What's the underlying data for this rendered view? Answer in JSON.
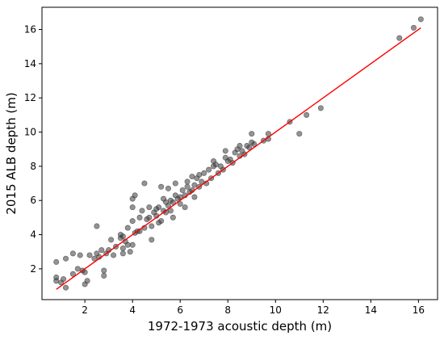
{
  "chart_data": {
    "type": "scatter",
    "xlabel": "1972-1973 acoustic depth (m)",
    "ylabel": "2015 ALB depth (m)",
    "xlim": [
      0.2,
      16.8
    ],
    "ylim": [
      0.2,
      17.3
    ],
    "xticks": [
      2,
      4,
      6,
      8,
      10,
      12,
      14,
      16
    ],
    "yticks": [
      2,
      4,
      6,
      8,
      10,
      12,
      14,
      16
    ],
    "grid": false,
    "point_color": "#3a3a3a",
    "line_color": "#ff0000",
    "points": [
      [
        0.8,
        2.4
      ],
      [
        0.8,
        1.5
      ],
      [
        0.8,
        1.3
      ],
      [
        1.0,
        1.2
      ],
      [
        1.2,
        0.9
      ],
      [
        1.1,
        1.4
      ],
      [
        1.2,
        2.6
      ],
      [
        1.5,
        2.9
      ],
      [
        1.5,
        1.7
      ],
      [
        1.7,
        2.0
      ],
      [
        1.8,
        2.8
      ],
      [
        1.9,
        1.9
      ],
      [
        2.0,
        1.1
      ],
      [
        2.0,
        1.8
      ],
      [
        2.1,
        1.3
      ],
      [
        2.2,
        2.8
      ],
      [
        2.4,
        2.6
      ],
      [
        2.5,
        2.9
      ],
      [
        2.5,
        4.5
      ],
      [
        2.6,
        2.7
      ],
      [
        2.7,
        3.1
      ],
      [
        2.8,
        1.6
      ],
      [
        2.8,
        1.9
      ],
      [
        2.9,
        2.9
      ],
      [
        3.0,
        3.1
      ],
      [
        3.1,
        3.7
      ],
      [
        3.2,
        2.8
      ],
      [
        3.3,
        3.3
      ],
      [
        3.5,
        3.8
      ],
      [
        3.5,
        4.0
      ],
      [
        3.6,
        3.9
      ],
      [
        3.6,
        3.2
      ],
      [
        3.6,
        2.9
      ],
      [
        3.7,
        3.6
      ],
      [
        3.8,
        3.4
      ],
      [
        3.8,
        4.4
      ],
      [
        3.9,
        3.0
      ],
      [
        4.0,
        3.4
      ],
      [
        4.0,
        4.8
      ],
      [
        4.0,
        5.6
      ],
      [
        4.0,
        6.1
      ],
      [
        4.1,
        6.3
      ],
      [
        4.1,
        4.1
      ],
      [
        4.2,
        4.2
      ],
      [
        4.3,
        4.2
      ],
      [
        4.3,
        5.0
      ],
      [
        4.4,
        5.4
      ],
      [
        4.5,
        4.4
      ],
      [
        4.5,
        7.0
      ],
      [
        4.6,
        4.9
      ],
      [
        4.7,
        5.0
      ],
      [
        4.7,
        5.6
      ],
      [
        4.8,
        4.5
      ],
      [
        4.8,
        3.7
      ],
      [
        4.9,
        5.3
      ],
      [
        5.0,
        5.1
      ],
      [
        5.0,
        5.5
      ],
      [
        5.1,
        4.7
      ],
      [
        5.1,
        5.6
      ],
      [
        5.2,
        4.8
      ],
      [
        5.2,
        6.8
      ],
      [
        5.3,
        5.4
      ],
      [
        5.3,
        6.1
      ],
      [
        5.4,
        5.3
      ],
      [
        5.4,
        5.9
      ],
      [
        5.5,
        5.7
      ],
      [
        5.5,
        6.7
      ],
      [
        5.6,
        5.4
      ],
      [
        5.6,
        6.0
      ],
      [
        5.7,
        5.0
      ],
      [
        5.7,
        5.9
      ],
      [
        5.8,
        6.3
      ],
      [
        5.8,
        7.0
      ],
      [
        5.9,
        6.1
      ],
      [
        6.0,
        6.2
      ],
      [
        6.0,
        5.8
      ],
      [
        6.1,
        6.6
      ],
      [
        6.2,
        6.3
      ],
      [
        6.2,
        5.6
      ],
      [
        6.3,
        6.8
      ],
      [
        6.3,
        7.1
      ],
      [
        6.4,
        6.5
      ],
      [
        6.5,
        6.6
      ],
      [
        6.5,
        7.4
      ],
      [
        6.6,
        6.2
      ],
      [
        6.6,
        6.9
      ],
      [
        6.7,
        7.3
      ],
      [
        6.8,
        7.5
      ],
      [
        6.8,
        6.8
      ],
      [
        6.9,
        7.1
      ],
      [
        7.0,
        7.6
      ],
      [
        7.1,
        7.0
      ],
      [
        7.2,
        7.8
      ],
      [
        7.3,
        7.3
      ],
      [
        7.4,
        8.3
      ],
      [
        7.4,
        8.0
      ],
      [
        7.5,
        8.1
      ],
      [
        7.6,
        7.6
      ],
      [
        7.7,
        8.0
      ],
      [
        7.8,
        7.8
      ],
      [
        7.9,
        8.9
      ],
      [
        7.9,
        8.5
      ],
      [
        8.0,
        8.3
      ],
      [
        8.1,
        8.4
      ],
      [
        8.2,
        8.2
      ],
      [
        8.3,
        8.8
      ],
      [
        8.4,
        9.0
      ],
      [
        8.5,
        8.6
      ],
      [
        8.5,
        9.2
      ],
      [
        8.6,
        8.9
      ],
      [
        8.7,
        8.7
      ],
      [
        8.8,
        9.2
      ],
      [
        8.9,
        9.1
      ],
      [
        9.0,
        9.4
      ],
      [
        9.0,
        9.9
      ],
      [
        9.1,
        9.3
      ],
      [
        9.5,
        9.5
      ],
      [
        9.7,
        9.9
      ],
      [
        9.7,
        9.6
      ],
      [
        10.6,
        10.6
      ],
      [
        11.0,
        9.9
      ],
      [
        11.3,
        11.0
      ],
      [
        11.9,
        11.4
      ],
      [
        15.2,
        15.5
      ],
      [
        15.8,
        16.1
      ],
      [
        16.1,
        16.6
      ]
    ],
    "fit_line": {
      "x": [
        0.8,
        16.1
      ],
      "y": [
        0.8,
        16.1
      ]
    }
  }
}
